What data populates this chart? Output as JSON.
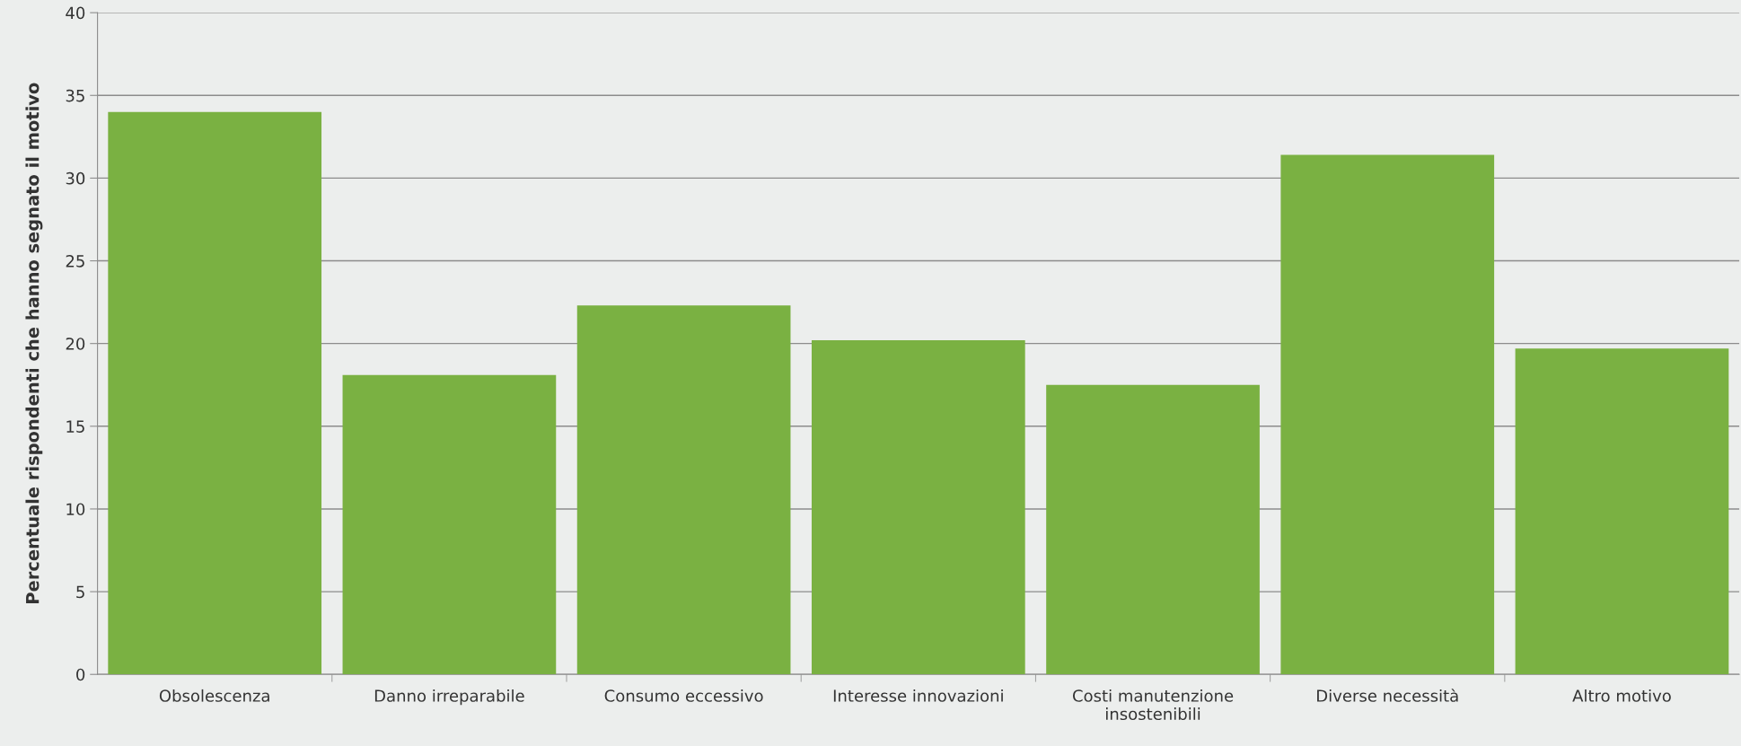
{
  "chart_data": {
    "type": "bar",
    "ylabel": "Percentuale rispondenti che hanno segnato il motivo",
    "categories": [
      "Obsolescenza",
      "Danno irreparabile",
      "Consumo eccessivo",
      "Interesse innovazioni",
      "Costi manutenzione\ninsostenibili",
      "Diverse necessità",
      "Altro motivo"
    ],
    "values": [
      34.0,
      18.1,
      22.3,
      20.2,
      17.5,
      31.4,
      19.7
    ],
    "color": "#7ab142",
    "ylim": [
      0,
      40
    ],
    "yticks": [
      0,
      5,
      10,
      15,
      20,
      25,
      30,
      35,
      40
    ],
    "grid": "y"
  }
}
